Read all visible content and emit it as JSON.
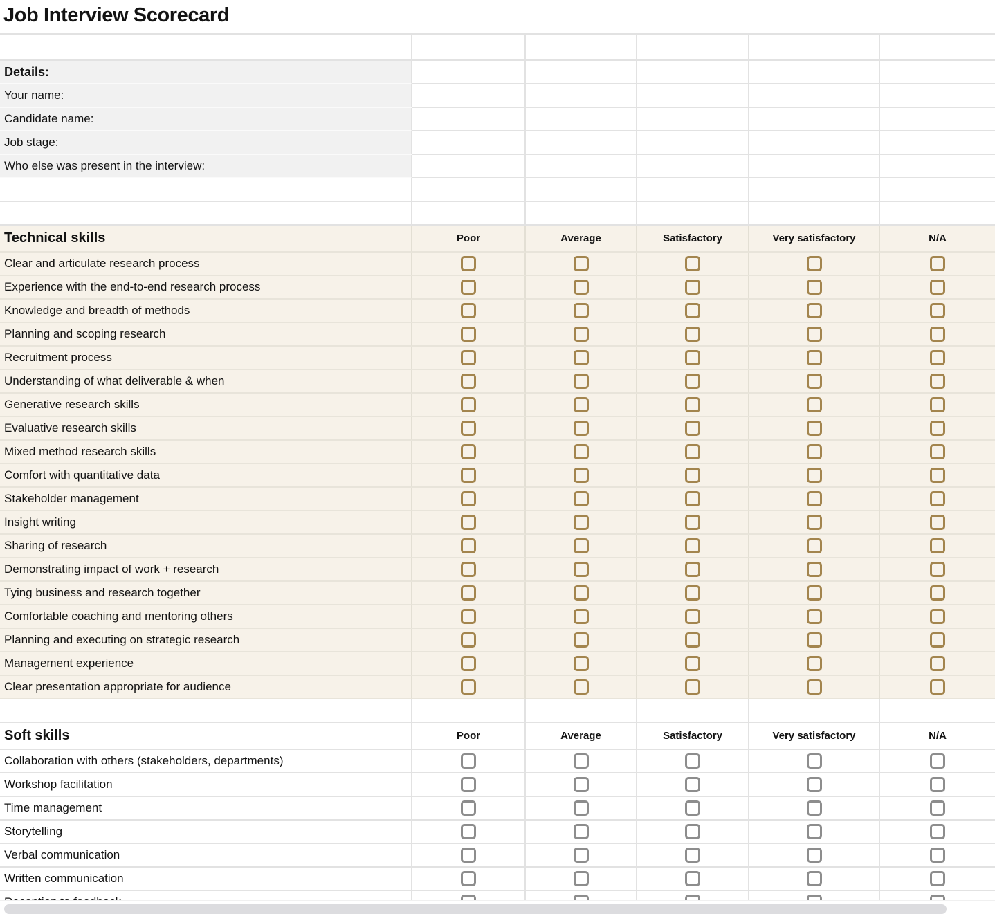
{
  "title": "Job Interview Scorecard",
  "columns": [
    "Poor",
    "Average",
    "Satisfactory",
    "Very satisfactory",
    "N/A"
  ],
  "details": {
    "header": "Details:",
    "fields": [
      "Your name:",
      "Candidate name:",
      "Job stage:",
      "Who else was present in the interview:"
    ]
  },
  "sections": [
    {
      "id": "technical",
      "title": "Technical skills",
      "bg": "#f7f2e9",
      "checkbox_color": "#a3854e",
      "rows": [
        "Clear and articulate research process",
        "Experience with the end-to-end research process",
        "Knowledge and breadth of methods",
        "Planning and scoping research",
        "Recruitment process",
        "Understanding of what deliverable & when",
        "Generative research skills",
        "Evaluative research skills",
        "Mixed method research skills",
        "Comfort with quantitative data",
        "Stakeholder management",
        "Insight writing",
        "Sharing of research",
        "Demonstrating impact of work + research",
        "Tying business and research together",
        "Comfortable coaching and mentoring others",
        "Planning and executing on strategic research",
        "Management experience",
        "Clear presentation appropriate for audience"
      ]
    },
    {
      "id": "soft",
      "title": "Soft skills",
      "bg": "#ffffff",
      "checkbox_color": "#8d8d8d",
      "rows": [
        "Collaboration with others (stakeholders, departments)",
        "Workshop facilitation",
        "Time management",
        "Storytelling",
        "Verbal communication",
        "Written communication",
        "Reception to feedback"
      ]
    }
  ],
  "colors": {
    "details_bg": "#f1f1f1",
    "technical_bg": "#f7f2e9",
    "technical_checkbox": "#a3854e",
    "soft_checkbox": "#8d8d8d",
    "grid_line": "#e2e2e2",
    "scrollbar_thumb": "#dcdcdf",
    "text": "#131313"
  }
}
